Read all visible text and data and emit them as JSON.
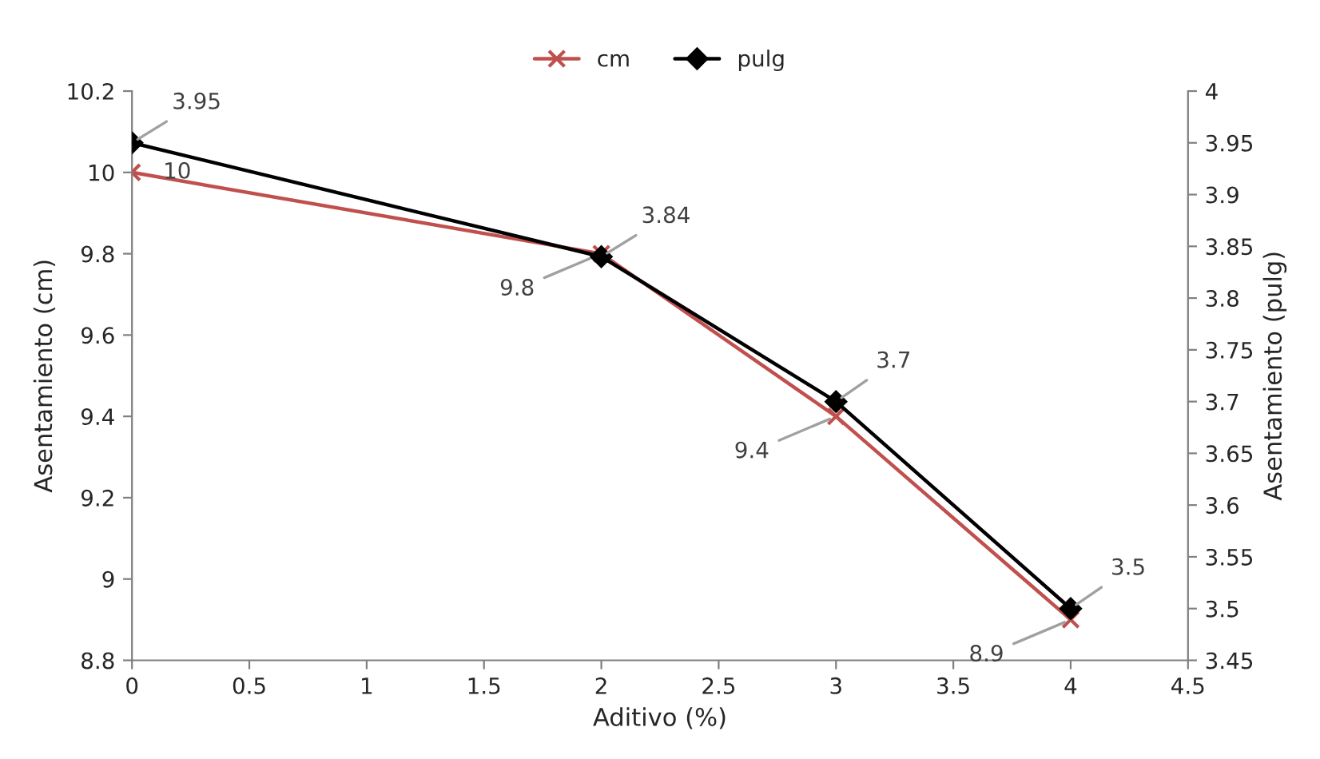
{
  "chart_data": {
    "type": "line",
    "xlabel": "Aditivo (%)",
    "ylabel": "Asentamiento (cm)",
    "y2label": "Asentamiento (pulg)",
    "x": [
      0,
      2,
      3,
      4
    ],
    "series": [
      {
        "name": "cm",
        "color": "#c0504d",
        "marker": "cross",
        "values": [
          10,
          9.8,
          9.4,
          8.9
        ]
      },
      {
        "name": "pulg",
        "color": "#000000",
        "marker": "diamond",
        "axis": "y2",
        "values": [
          3.95,
          3.84,
          3.7,
          3.5
        ]
      }
    ],
    "xlim": [
      0,
      4.5
    ],
    "xticks": [
      0,
      0.5,
      1,
      1.5,
      2,
      2.5,
      3,
      3.5,
      4,
      4.5
    ],
    "ylim": [
      8.8,
      10.2
    ],
    "yticks": [
      8.8,
      9,
      9.2,
      9.4,
      9.6,
      9.8,
      10,
      10.2
    ],
    "y2lim": [
      3.45,
      4
    ],
    "y2ticks": [
      3.45,
      3.5,
      3.55,
      3.6,
      3.65,
      3.7,
      3.75,
      3.8,
      3.85,
      3.9,
      3.95,
      4
    ],
    "data_labels": true,
    "grid": false,
    "legend": "top",
    "line_style": "solid"
  }
}
